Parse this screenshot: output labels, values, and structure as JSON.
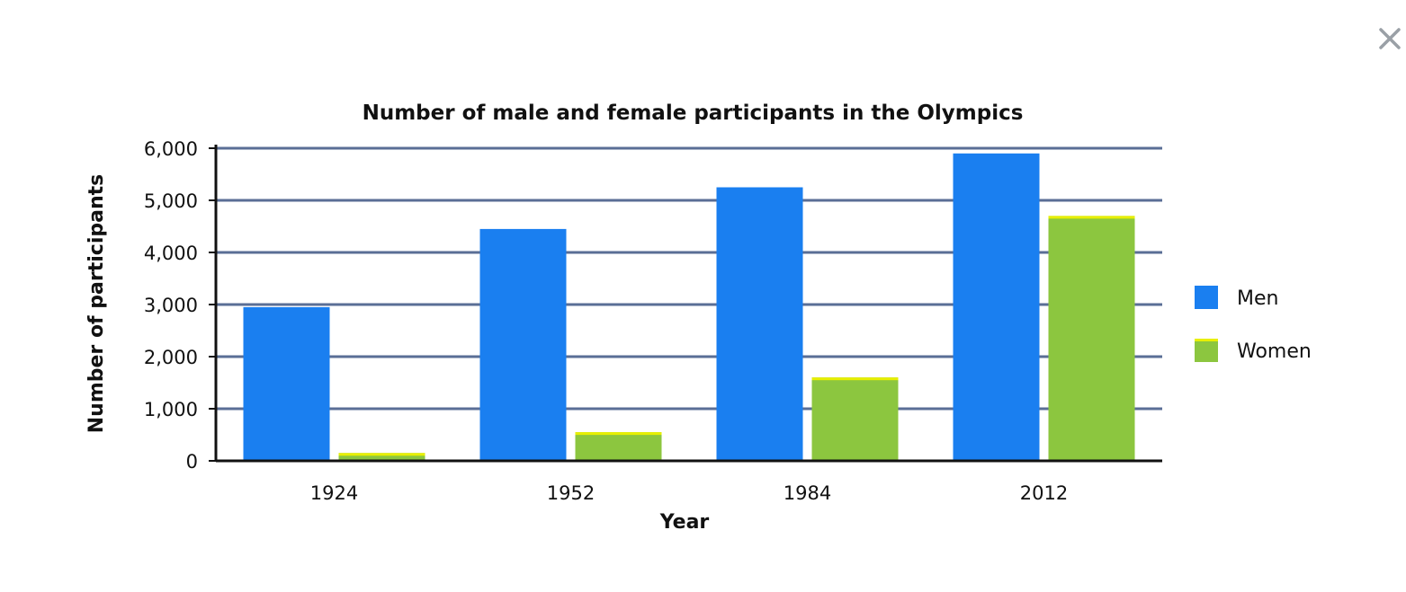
{
  "dialog": {
    "close_icon": "close-icon"
  },
  "chart_data": {
    "type": "bar",
    "title": "Number of male and female participants in the Olympics",
    "xlabel": "Year",
    "ylabel": "Number of participants",
    "categories": [
      "1924",
      "1952",
      "1984",
      "2012"
    ],
    "series": [
      {
        "name": "Men",
        "color": "#1a7ff0",
        "values": [
          2950,
          4450,
          5250,
          5900
        ]
      },
      {
        "name": "Women",
        "color": "#8cc63f",
        "cap_color": "#e8ef00",
        "values": [
          150,
          550,
          1600,
          4700
        ]
      }
    ],
    "ylim": [
      0,
      6000
    ],
    "yticks": [
      0,
      1000,
      2000,
      3000,
      4000,
      5000,
      6000
    ],
    "ytick_labels": [
      "0",
      "1,000",
      "2,000",
      "3,000",
      "4,000",
      "5,000",
      "6,000"
    ],
    "grid": true,
    "grid_color": "#5a6e96",
    "legend_position": "right"
  }
}
